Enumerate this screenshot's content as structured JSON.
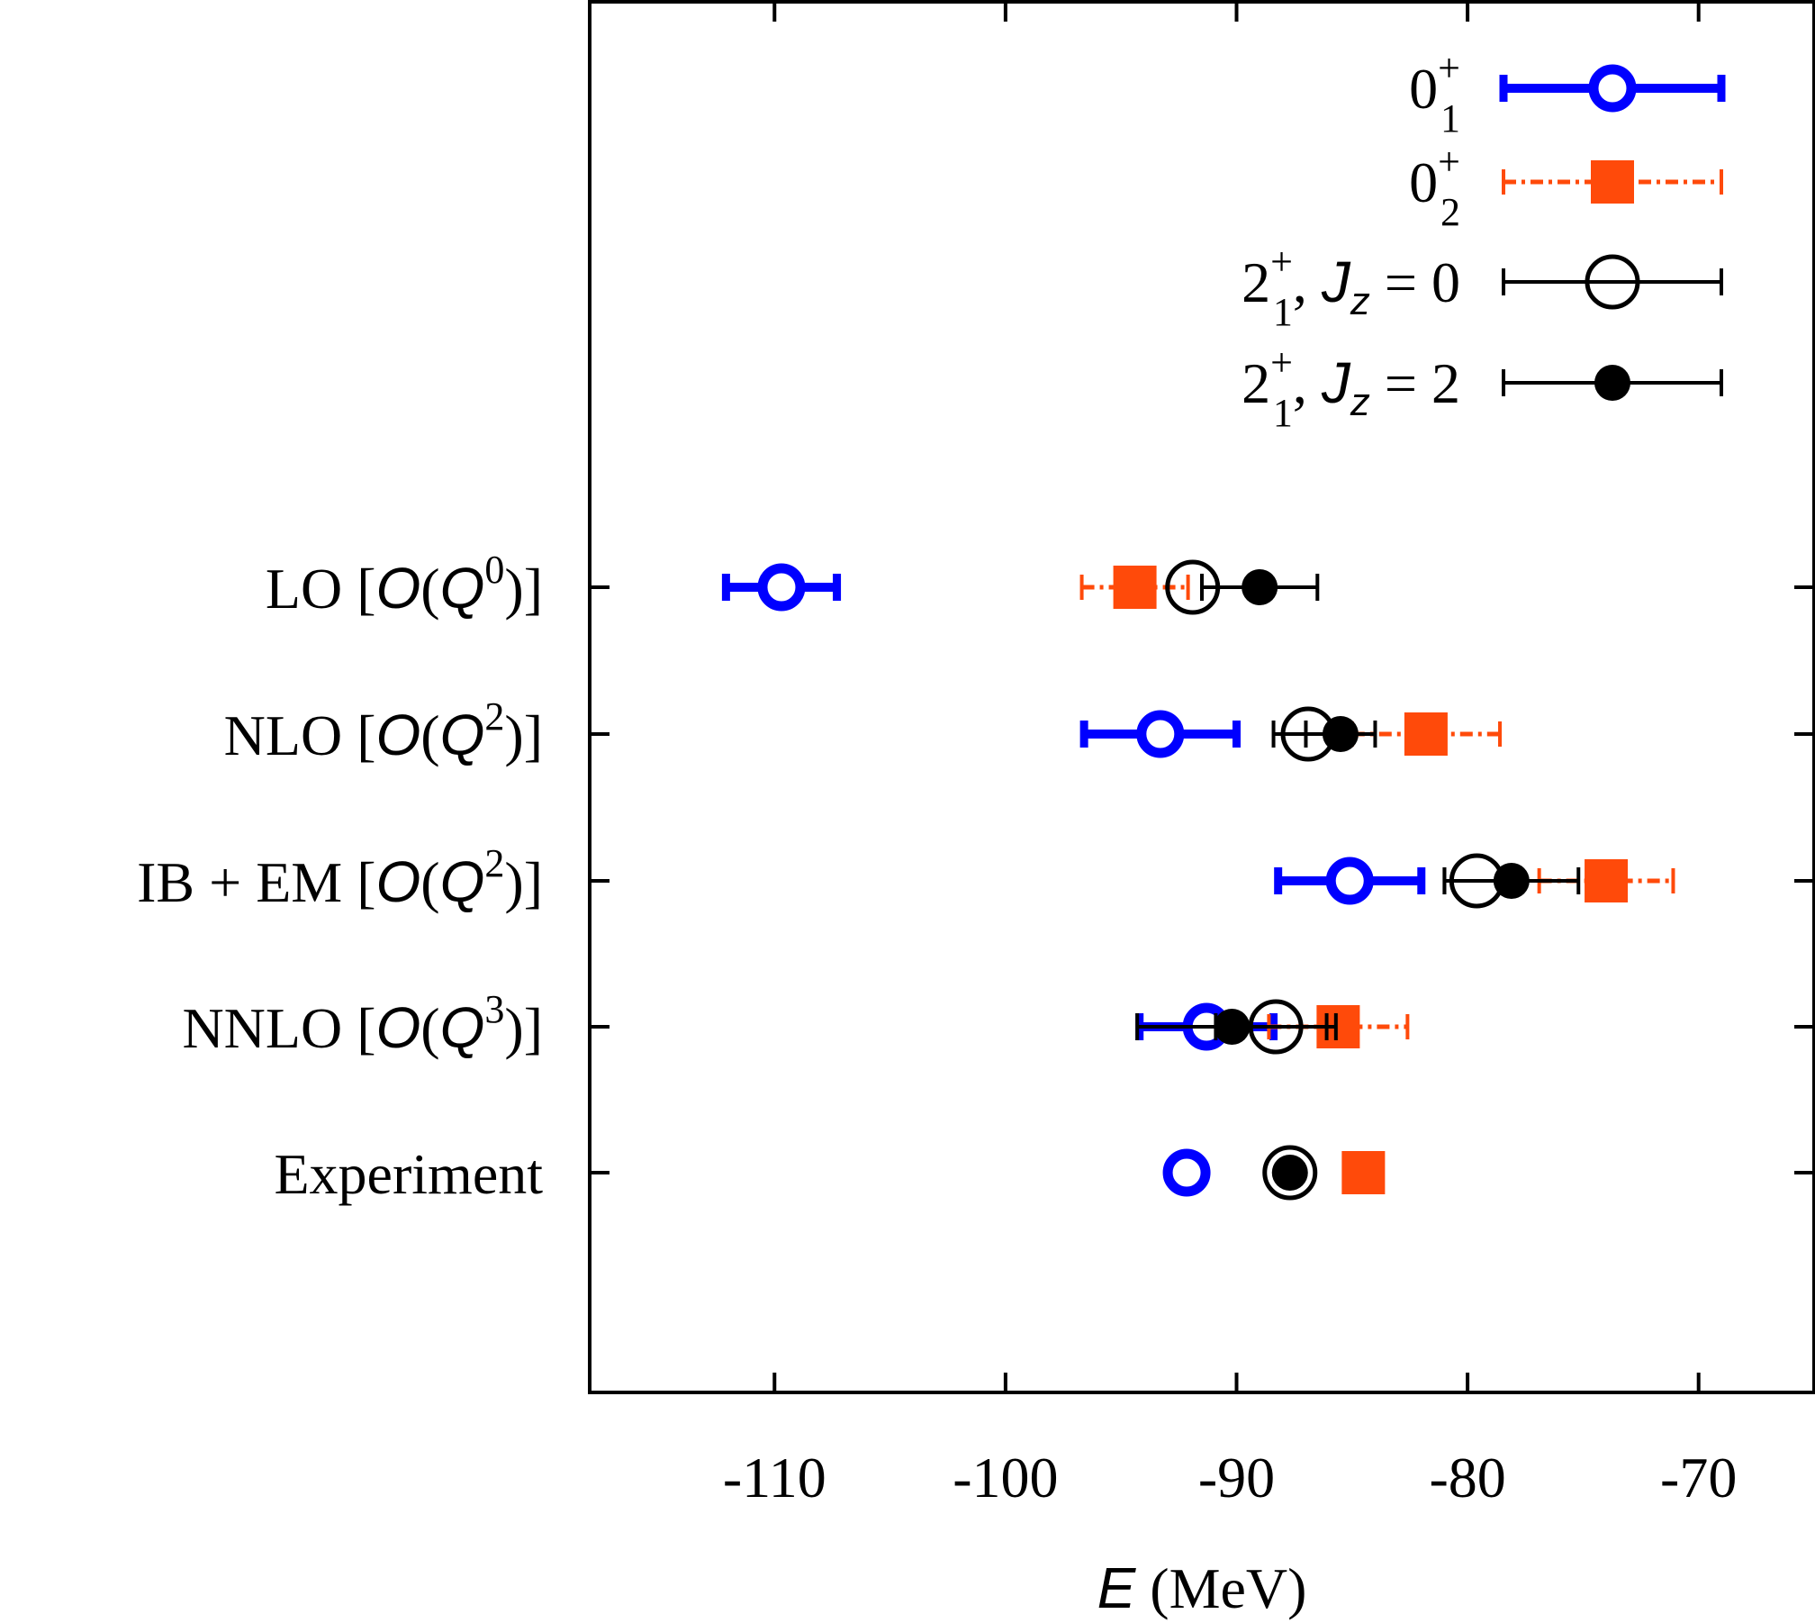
{
  "chart_data": {
    "type": "scatter",
    "orientation": "horizontal",
    "title": "",
    "xlabel": {
      "var": "E",
      "unit": " (MeV)"
    },
    "ylabel": "",
    "xlim": [
      -118,
      -65
    ],
    "xticks": [
      -110,
      -100,
      -90,
      -80,
      -70
    ],
    "xtick_labels": [
      "-110",
      "-100",
      "-90",
      "-80",
      "-70"
    ],
    "grid": false,
    "legend_position": "top-right",
    "categories": [
      {
        "pre": "LO [",
        "O": "O",
        "Q": "Q",
        "exp": "0",
        "post": ")]"
      },
      {
        "pre": "NLO [",
        "O": "O",
        "Q": "Q",
        "exp": "2",
        "post": ")]"
      },
      {
        "pre": "IB + EM [",
        "O": "O",
        "Q": "Q",
        "exp": "2",
        "post": ")]"
      },
      {
        "pre": "NNLO [",
        "O": "O",
        "Q": "Q",
        "exp": "3",
        "post": ")]"
      },
      {
        "plain": "Experiment"
      }
    ],
    "series": [
      {
        "legend": {
          "base": "0",
          "sup": "+",
          "sub": "1",
          "suffix": ""
        },
        "color": "#0000ff",
        "marker": "open-circle-thick",
        "line": "solid-thick",
        "points": [
          {
            "value": -109.7,
            "err": 2.4
          },
          {
            "value": -93.3,
            "err": 3.3
          },
          {
            "value": -85.1,
            "err": 3.1
          },
          {
            "value": -91.3,
            "err": 2.9
          },
          {
            "value": -92.16,
            "err": 0
          }
        ]
      },
      {
        "legend": {
          "base": "0",
          "sup": "+",
          "sub": "2",
          "suffix": ""
        },
        "color": "#ff4a0a",
        "marker": "filled-square",
        "line": "dash-dot",
        "points": [
          {
            "value": -94.4,
            "err": 2.3
          },
          {
            "value": -81.8,
            "err": 3.2
          },
          {
            "value": -74.0,
            "err": 2.9
          },
          {
            "value": -85.6,
            "err": 3.0
          },
          {
            "value": -84.51,
            "err": 0
          }
        ]
      },
      {
        "legend": {
          "base": "2",
          "sup": "+",
          "sub": "1",
          "suffix": ", ",
          "var": "J",
          "varsub": "z",
          "eq": " = 0"
        },
        "color": "#000000",
        "marker": "open-circle",
        "line": "solid",
        "points": [
          {
            "value": -91.9,
            "err": 0
          },
          {
            "value": -86.9,
            "err": 1.5
          },
          {
            "value": -79.6,
            "err": 1.4
          },
          {
            "value": -88.3,
            "err": 2.6
          },
          {
            "value": -87.69,
            "err": 0
          }
        ]
      },
      {
        "legend": {
          "base": "2",
          "sup": "+",
          "sub": "1",
          "suffix": ", ",
          "var": "J",
          "varsub": "z",
          "eq": " = 2"
        },
        "color": "#000000",
        "marker": "filled-circle",
        "line": "solid",
        "points": [
          {
            "value": -89.0,
            "err": 2.5
          },
          {
            "value": -85.5,
            "err": 1.5
          },
          {
            "value": -78.1,
            "err": 2.9
          },
          {
            "value": -90.2,
            "err": 4.1
          },
          {
            "value": -87.69,
            "err": 0
          }
        ]
      }
    ]
  }
}
